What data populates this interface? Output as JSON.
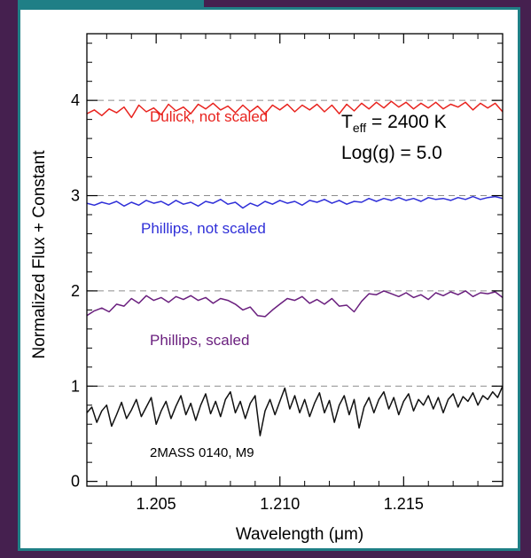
{
  "theme": {
    "frame_color": "#45204f",
    "panel_border_color": "#1f7f86"
  },
  "chart_data": {
    "type": "line",
    "title": "",
    "xlabel": "Wavelength (μm)",
    "ylabel": "Normalized Flux + Constant",
    "xlim": [
      1.2022,
      1.219
    ],
    "ylim": [
      -0.05,
      4.7
    ],
    "x_ticks": [
      1.205,
      1.21,
      1.215
    ],
    "x_tick_labels": [
      "1.205",
      "1.210",
      "1.215"
    ],
    "y_ticks": [
      0,
      1,
      2,
      3,
      4
    ],
    "y_tick_labels": [
      "0",
      "1",
      "2",
      "3",
      "4"
    ],
    "grid": false,
    "reference_lines": [
      1,
      2,
      3,
      4
    ],
    "annotations": {
      "teff_prefix": "T",
      "teff_sub": "eff",
      "teff_value": " = 2400 K",
      "logg": "Log(g) = 5.0"
    },
    "series": [
      {
        "name": "Dulick, not scaled",
        "color": "#e8231e",
        "points": [
          [
            1.2022,
            3.86
          ],
          [
            1.2025,
            3.9
          ],
          [
            1.2028,
            3.84
          ],
          [
            1.2031,
            3.91
          ],
          [
            1.2034,
            3.87
          ],
          [
            1.2037,
            3.93
          ],
          [
            1.204,
            3.82
          ],
          [
            1.2043,
            3.95
          ],
          [
            1.2046,
            3.88
          ],
          [
            1.2049,
            3.92
          ],
          [
            1.2052,
            3.85
          ],
          [
            1.2055,
            3.96
          ],
          [
            1.2058,
            3.89
          ],
          [
            1.2061,
            3.93
          ],
          [
            1.2064,
            3.86
          ],
          [
            1.2067,
            3.96
          ],
          [
            1.207,
            3.91
          ],
          [
            1.2073,
            3.97
          ],
          [
            1.2076,
            3.9
          ],
          [
            1.2079,
            3.94
          ],
          [
            1.2082,
            3.87
          ],
          [
            1.2085,
            3.95
          ],
          [
            1.2088,
            3.88
          ],
          [
            1.2091,
            3.94
          ],
          [
            1.2094,
            3.86
          ],
          [
            1.2097,
            3.95
          ],
          [
            1.21,
            3.9
          ],
          [
            1.2103,
            3.96
          ],
          [
            1.2106,
            3.88
          ],
          [
            1.2109,
            3.95
          ],
          [
            1.2112,
            3.9
          ],
          [
            1.2115,
            3.96
          ],
          [
            1.2118,
            3.88
          ],
          [
            1.2121,
            3.95
          ],
          [
            1.2124,
            3.86
          ],
          [
            1.2127,
            3.96
          ],
          [
            1.213,
            3.89
          ],
          [
            1.2133,
            3.97
          ],
          [
            1.2136,
            3.91
          ],
          [
            1.2139,
            3.98
          ],
          [
            1.2142,
            3.92
          ],
          [
            1.2145,
            3.99
          ],
          [
            1.2148,
            3.93
          ],
          [
            1.2151,
            3.98
          ],
          [
            1.2154,
            3.91
          ],
          [
            1.2157,
            3.97
          ],
          [
            1.216,
            3.92
          ],
          [
            1.2163,
            3.98
          ],
          [
            1.2166,
            3.91
          ],
          [
            1.2169,
            3.96
          ],
          [
            1.2172,
            3.93
          ],
          [
            1.2175,
            3.98
          ],
          [
            1.2178,
            3.9
          ],
          [
            1.2181,
            3.97
          ],
          [
            1.2184,
            3.92
          ],
          [
            1.2187,
            3.97
          ],
          [
            1.219,
            3.88
          ]
        ]
      },
      {
        "name": "Phillips, not scaled",
        "color": "#2f2fd8",
        "points": [
          [
            1.2022,
            2.92
          ],
          [
            1.2025,
            2.9
          ],
          [
            1.2028,
            2.93
          ],
          [
            1.2031,
            2.91
          ],
          [
            1.2034,
            2.94
          ],
          [
            1.2037,
            2.89
          ],
          [
            1.204,
            2.93
          ],
          [
            1.2043,
            2.9
          ],
          [
            1.2046,
            2.95
          ],
          [
            1.2049,
            2.92
          ],
          [
            1.2052,
            2.94
          ],
          [
            1.2055,
            2.9
          ],
          [
            1.2058,
            2.95
          ],
          [
            1.2061,
            2.91
          ],
          [
            1.2064,
            2.93
          ],
          [
            1.2067,
            2.89
          ],
          [
            1.207,
            2.94
          ],
          [
            1.2073,
            2.92
          ],
          [
            1.2076,
            2.96
          ],
          [
            1.2079,
            2.91
          ],
          [
            1.2082,
            2.93
          ],
          [
            1.2085,
            2.87
          ],
          [
            1.2088,
            2.92
          ],
          [
            1.2091,
            2.89
          ],
          [
            1.2094,
            2.94
          ],
          [
            1.2097,
            2.91
          ],
          [
            1.21,
            2.95
          ],
          [
            1.2103,
            2.92
          ],
          [
            1.2106,
            2.94
          ],
          [
            1.2109,
            2.9
          ],
          [
            1.2112,
            2.95
          ],
          [
            1.2115,
            2.93
          ],
          [
            1.2118,
            2.96
          ],
          [
            1.2121,
            2.92
          ],
          [
            1.2124,
            2.95
          ],
          [
            1.2127,
            2.91
          ],
          [
            1.213,
            2.94
          ],
          [
            1.2133,
            2.93
          ],
          [
            1.2136,
            2.97
          ],
          [
            1.2139,
            2.94
          ],
          [
            1.2142,
            2.97
          ],
          [
            1.2145,
            2.95
          ],
          [
            1.2148,
            2.98
          ],
          [
            1.2151,
            2.95
          ],
          [
            1.2154,
            2.97
          ],
          [
            1.2157,
            2.94
          ],
          [
            1.216,
            2.98
          ],
          [
            1.2163,
            2.96
          ],
          [
            1.2166,
            2.97
          ],
          [
            1.2169,
            2.95
          ],
          [
            1.2172,
            2.98
          ],
          [
            1.2175,
            2.96
          ],
          [
            1.2178,
            2.99
          ],
          [
            1.2181,
            2.96
          ],
          [
            1.2184,
            2.98
          ],
          [
            1.2187,
            2.99
          ],
          [
            1.219,
            2.97
          ]
        ]
      },
      {
        "name": "Phillips, scaled",
        "color": "#6a1f7e",
        "points": [
          [
            1.2022,
            1.74
          ],
          [
            1.2025,
            1.79
          ],
          [
            1.2028,
            1.82
          ],
          [
            1.2031,
            1.78
          ],
          [
            1.2034,
            1.86
          ],
          [
            1.2037,
            1.84
          ],
          [
            1.204,
            1.92
          ],
          [
            1.2043,
            1.87
          ],
          [
            1.2046,
            1.95
          ],
          [
            1.2049,
            1.9
          ],
          [
            1.2052,
            1.93
          ],
          [
            1.2055,
            1.88
          ],
          [
            1.2058,
            1.94
          ],
          [
            1.2061,
            1.91
          ],
          [
            1.2064,
            1.95
          ],
          [
            1.2067,
            1.9
          ],
          [
            1.207,
            1.93
          ],
          [
            1.2073,
            1.87
          ],
          [
            1.2076,
            1.92
          ],
          [
            1.2079,
            1.9
          ],
          [
            1.2082,
            1.86
          ],
          [
            1.2085,
            1.8
          ],
          [
            1.2088,
            1.83
          ],
          [
            1.2091,
            1.74
          ],
          [
            1.2094,
            1.73
          ],
          [
            1.2097,
            1.8
          ],
          [
            1.21,
            1.86
          ],
          [
            1.2103,
            1.92
          ],
          [
            1.2106,
            1.9
          ],
          [
            1.2109,
            1.94
          ],
          [
            1.2112,
            1.87
          ],
          [
            1.2115,
            1.91
          ],
          [
            1.2118,
            1.86
          ],
          [
            1.2121,
            1.92
          ],
          [
            1.2124,
            1.84
          ],
          [
            1.2127,
            1.85
          ],
          [
            1.213,
            1.78
          ],
          [
            1.2133,
            1.89
          ],
          [
            1.2136,
            1.97
          ],
          [
            1.2139,
            1.96
          ],
          [
            1.2142,
            2.0
          ],
          [
            1.2145,
            1.97
          ],
          [
            1.2148,
            1.94
          ],
          [
            1.2151,
            1.98
          ],
          [
            1.2154,
            1.93
          ],
          [
            1.2157,
            1.96
          ],
          [
            1.216,
            1.91
          ],
          [
            1.2163,
            1.98
          ],
          [
            1.2166,
            1.95
          ],
          [
            1.2169,
            1.99
          ],
          [
            1.2172,
            1.96
          ],
          [
            1.2175,
            2.0
          ],
          [
            1.2178,
            1.94
          ],
          [
            1.2181,
            1.98
          ],
          [
            1.2184,
            1.97
          ],
          [
            1.2187,
            1.99
          ],
          [
            1.219,
            1.93
          ]
        ]
      },
      {
        "name": "2MASS 0140, M9",
        "color": "#111111",
        "points": [
          [
            1.2022,
            0.72
          ],
          [
            1.2024,
            0.78
          ],
          [
            1.2026,
            0.62
          ],
          [
            1.2028,
            0.74
          ],
          [
            1.203,
            0.8
          ],
          [
            1.2032,
            0.58
          ],
          [
            1.2034,
            0.7
          ],
          [
            1.2036,
            0.83
          ],
          [
            1.2038,
            0.66
          ],
          [
            1.204,
            0.75
          ],
          [
            1.2042,
            0.86
          ],
          [
            1.2044,
            0.68
          ],
          [
            1.2046,
            0.78
          ],
          [
            1.2048,
            0.88
          ],
          [
            1.205,
            0.6
          ],
          [
            1.2052,
            0.74
          ],
          [
            1.2054,
            0.84
          ],
          [
            1.2056,
            0.66
          ],
          [
            1.2058,
            0.79
          ],
          [
            1.206,
            0.9
          ],
          [
            1.2062,
            0.7
          ],
          [
            1.2064,
            0.82
          ],
          [
            1.2066,
            0.64
          ],
          [
            1.2068,
            0.8
          ],
          [
            1.207,
            0.92
          ],
          [
            1.2072,
            0.71
          ],
          [
            1.2074,
            0.84
          ],
          [
            1.2076,
            0.68
          ],
          [
            1.2078,
            0.86
          ],
          [
            1.208,
            0.94
          ],
          [
            1.2082,
            0.72
          ],
          [
            1.2084,
            0.84
          ],
          [
            1.2086,
            0.66
          ],
          [
            1.2088,
            0.82
          ],
          [
            1.209,
            0.9
          ],
          [
            1.2092,
            0.48
          ],
          [
            1.2094,
            0.74
          ],
          [
            1.2096,
            0.86
          ],
          [
            1.2098,
            0.7
          ],
          [
            1.21,
            0.84
          ],
          [
            1.2102,
            0.98
          ],
          [
            1.2104,
            0.76
          ],
          [
            1.2106,
            0.9
          ],
          [
            1.2108,
            0.72
          ],
          [
            1.211,
            0.86
          ],
          [
            1.2112,
            0.68
          ],
          [
            1.2114,
            0.82
          ],
          [
            1.2116,
            0.93
          ],
          [
            1.2118,
            0.72
          ],
          [
            1.212,
            0.85
          ],
          [
            1.2122,
            0.62
          ],
          [
            1.2124,
            0.8
          ],
          [
            1.2126,
            0.9
          ],
          [
            1.2128,
            0.7
          ],
          [
            1.213,
            0.86
          ],
          [
            1.2132,
            0.56
          ],
          [
            1.2134,
            0.78
          ],
          [
            1.2136,
            0.88
          ],
          [
            1.2138,
            0.72
          ],
          [
            1.214,
            0.86
          ],
          [
            1.2142,
            0.94
          ],
          [
            1.2144,
            0.76
          ],
          [
            1.2146,
            0.88
          ],
          [
            1.2148,
            0.7
          ],
          [
            1.215,
            0.84
          ],
          [
            1.2152,
            0.92
          ],
          [
            1.2154,
            0.74
          ],
          [
            1.2156,
            0.86
          ],
          [
            1.2158,
            0.8
          ],
          [
            1.216,
            0.9
          ],
          [
            1.2162,
            0.76
          ],
          [
            1.2164,
            0.88
          ],
          [
            1.2166,
            0.72
          ],
          [
            1.2168,
            0.86
          ],
          [
            1.217,
            0.92
          ],
          [
            1.2172,
            0.78
          ],
          [
            1.2174,
            0.89
          ],
          [
            1.2176,
            0.84
          ],
          [
            1.2178,
            0.93
          ],
          [
            1.218,
            0.8
          ],
          [
            1.2182,
            0.9
          ],
          [
            1.2184,
            0.86
          ],
          [
            1.2186,
            0.94
          ],
          [
            1.2188,
            0.88
          ],
          [
            1.219,
            1.0
          ]
        ]
      }
    ]
  }
}
